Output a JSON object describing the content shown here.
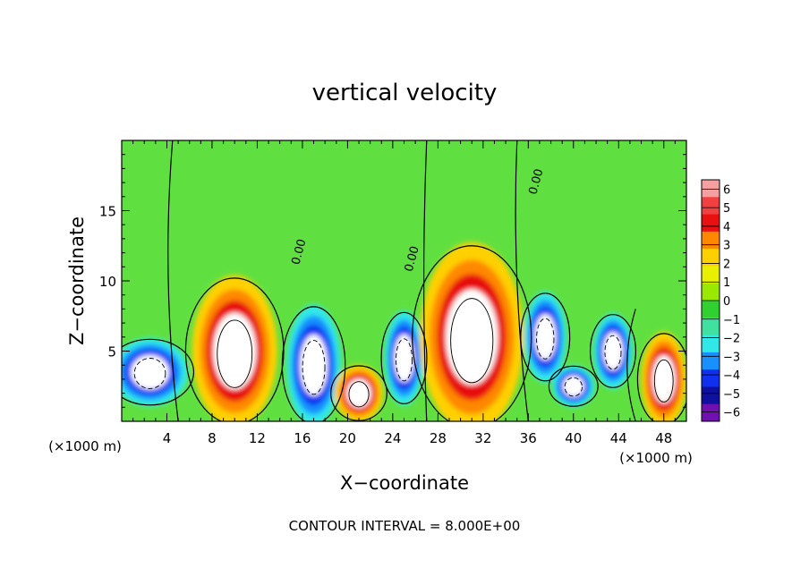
{
  "chart_data": {
    "type": "heatmap",
    "title": "vertical velocity",
    "xlabel": "X−coordinate",
    "ylabel": "Z−coordinate",
    "x_unit_left": "(×1000 m)",
    "x_unit_right": "(×1000 m)",
    "footer": "CONTOUR INTERVAL = 8.000E+00",
    "xlim": [
      0,
      50
    ],
    "ylim": [
      0,
      20
    ],
    "x_ticks": [
      4,
      8,
      12,
      16,
      20,
      24,
      28,
      32,
      36,
      40,
      44,
      48
    ],
    "y_ticks": [
      5,
      10,
      15
    ],
    "colorbar": {
      "ticks": [
        6,
        5,
        4,
        3,
        2,
        1,
        0,
        -1,
        -2,
        -3,
        -4,
        -5,
        -6
      ],
      "tick_labels": [
        "6",
        "5",
        "4",
        "3",
        "2",
        "1",
        "0",
        "−1",
        "−2",
        "−3",
        "−4",
        "−5",
        "−6"
      ],
      "colors": [
        "#f5a0a0",
        "#f04040",
        "#e81010",
        "#ff8800",
        "#ffd000",
        "#e8f000",
        "#9ae800",
        "#30d030",
        "#40e0a0",
        "#30e8e8",
        "#1890ff",
        "#1030f0",
        "#1010a0",
        "#7010b0"
      ]
    },
    "contour_labels": [
      "0.00",
      "0.00",
      "0.00"
    ],
    "cells": [
      {
        "x": 2.5,
        "z": 3.5,
        "rx": 2.5,
        "rz": 1.8,
        "w": -6
      },
      {
        "x": 10,
        "z": 5,
        "rx": 2.8,
        "rz": 4.0,
        "w": 6
      },
      {
        "x": 17,
        "z": 4,
        "rx": 1.8,
        "rz": 3.2,
        "w": -6
      },
      {
        "x": 21,
        "z": 2,
        "rx": 1.6,
        "rz": 1.5,
        "w": 5
      },
      {
        "x": 25,
        "z": 4.5,
        "rx": 1.3,
        "rz": 2.5,
        "w": -6
      },
      {
        "x": 31,
        "z": 6,
        "rx": 3.4,
        "rz": 5.0,
        "w": 6
      },
      {
        "x": 37.5,
        "z": 6,
        "rx": 1.4,
        "rz": 2.4,
        "w": -6
      },
      {
        "x": 40,
        "z": 2.5,
        "rx": 1.4,
        "rz": 1.1,
        "w": -6
      },
      {
        "x": 43.5,
        "z": 5,
        "rx": 1.3,
        "rz": 2.0,
        "w": -6
      },
      {
        "x": 48,
        "z": 3,
        "rx": 1.5,
        "rz": 2.5,
        "w": 5
      }
    ]
  }
}
